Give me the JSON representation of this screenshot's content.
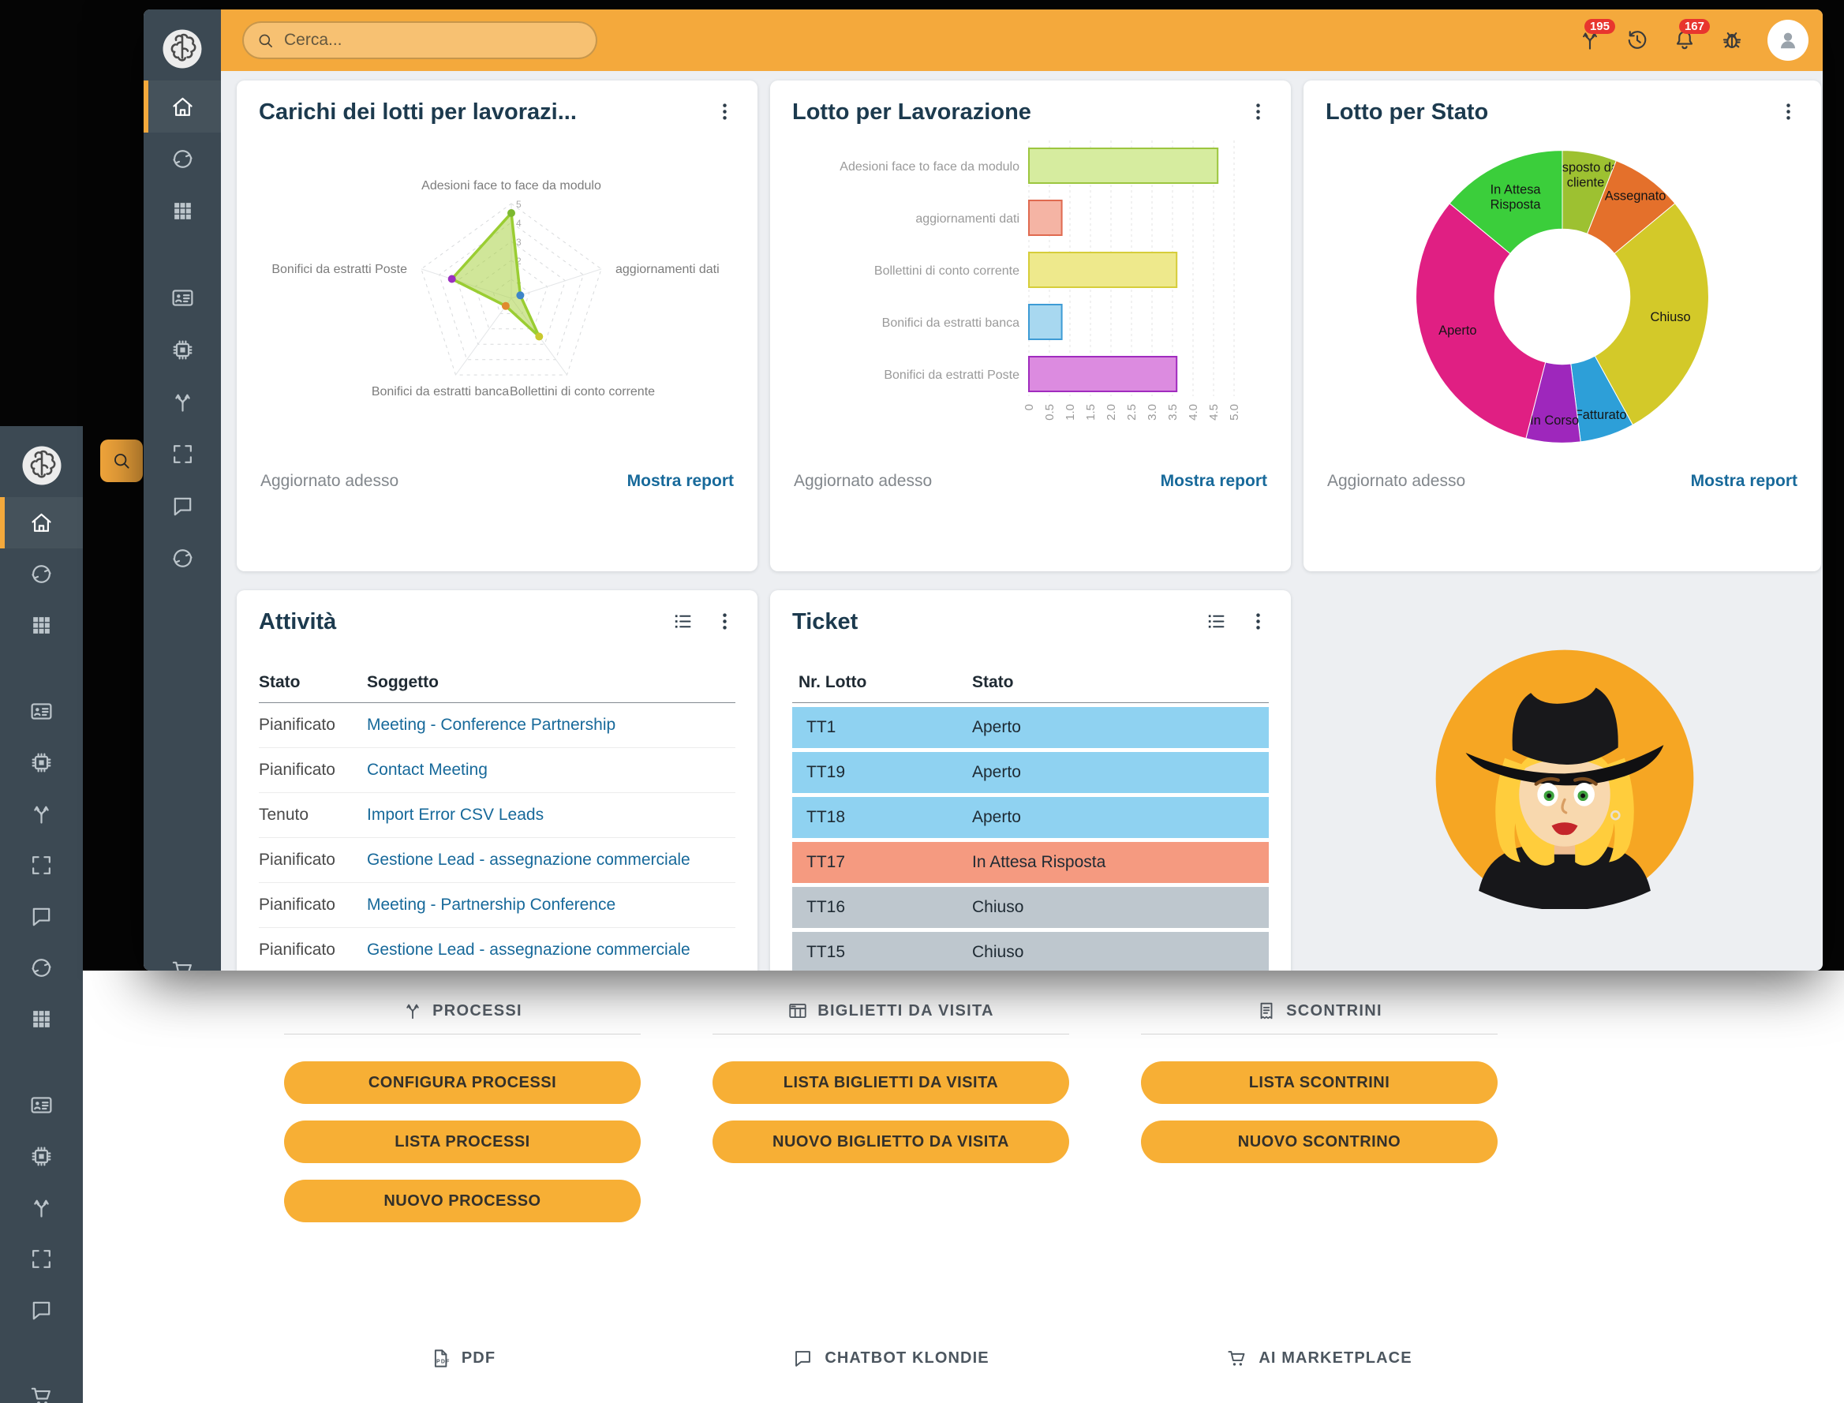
{
  "app": {
    "accent_color": "#f4a93c",
    "sidebar_color": "#3c4953",
    "badge_color": "#e8352e",
    "link_color": "#17699a"
  },
  "front_window": {
    "search": {
      "placeholder": "Cerca..."
    },
    "topbar_icons": [
      {
        "name": "process",
        "badge": "195"
      },
      {
        "name": "history"
      },
      {
        "name": "bell",
        "badge": "167"
      },
      {
        "name": "bug"
      },
      {
        "name": "avatar"
      }
    ],
    "sidebar": [
      {
        "icon": "home",
        "active": true
      },
      {
        "icon": "sync"
      },
      {
        "icon": "grid"
      },
      {
        "icon": "card",
        "gap": true
      },
      {
        "icon": "chip"
      },
      {
        "icon": "branch"
      },
      {
        "icon": "expand"
      },
      {
        "icon": "chat"
      },
      {
        "icon": "sync"
      }
    ],
    "cards": {
      "radar": {
        "title": "Carichi dei lotti per lavorazi...",
        "updated": "Aggiornato adesso",
        "report": "Mostra report"
      },
      "bar": {
        "title": "Lotto per Lavorazione",
        "updated": "Aggiornato adesso",
        "report": "Mostra report"
      },
      "donut": {
        "title": "Lotto per Stato",
        "updated": "Aggiornato adesso",
        "report": "Mostra report"
      },
      "activities": {
        "title": "Attività",
        "columns": [
          "Stato",
          "Soggetto"
        ],
        "rows": [
          [
            "Pianificato",
            "Meeting - Conference Partnership"
          ],
          [
            "Pianificato",
            "Contact Meeting"
          ],
          [
            "Tenuto",
            "Import Error CSV Leads"
          ],
          [
            "Pianificato",
            "Gestione Lead - assegnazione commerciale"
          ],
          [
            "Pianificato",
            "Meeting - Partnership Conference"
          ],
          [
            "Pianificato",
            "Gestione Lead - assegnazione commerciale"
          ]
        ]
      },
      "tickets": {
        "title": "Ticket",
        "columns": [
          "Nr. Lotto",
          "Stato"
        ],
        "rows": [
          {
            "lotto": "TT1",
            "stato": "Aperto",
            "color": "#8fd2f1"
          },
          {
            "lotto": "TT19",
            "stato": "Aperto",
            "color": "#8fd2f1"
          },
          {
            "lotto": "TT18",
            "stato": "Aperto",
            "color": "#8fd2f1"
          },
          {
            "lotto": "TT17",
            "stato": "In Attesa Risposta",
            "color": "#f59a80"
          },
          {
            "lotto": "TT16",
            "stato": "Chiuso",
            "color": "#bec7ce"
          },
          {
            "lotto": "TT15",
            "stato": "Chiuso",
            "color": "#bec7ce"
          }
        ]
      }
    }
  },
  "back_window": {
    "sidebar": [
      {
        "icon": "home",
        "active": true
      },
      {
        "icon": "sync"
      },
      {
        "icon": "grid"
      },
      {
        "icon": "card",
        "gap": true
      },
      {
        "icon": "chip"
      },
      {
        "icon": "branch"
      },
      {
        "icon": "expand"
      },
      {
        "icon": "chat"
      },
      {
        "icon": "sync"
      },
      {
        "icon": "grid"
      },
      {
        "icon": "card",
        "gap": true
      },
      {
        "icon": "chip"
      },
      {
        "icon": "branch"
      },
      {
        "icon": "expand"
      },
      {
        "icon": "chat"
      },
      {
        "icon": "cart",
        "gap": true
      }
    ],
    "sections": [
      {
        "title": "PROCESSI",
        "icon": "branch",
        "buttons": [
          "CONFIGURA PROCESSI",
          "LISTA PROCESSI",
          "NUOVO PROCESSO"
        ]
      },
      {
        "title": "BIGLIETTI DA VISITA",
        "icon": "cardgrid",
        "buttons": [
          "LISTA BIGLIETTI DA VISITA",
          "NUOVO BIGLIETTO DA VISITA"
        ]
      },
      {
        "title": "SCONTRINI",
        "icon": "receipt",
        "buttons": [
          "LISTA SCONTRINI",
          "NUOVO SCONTRINO"
        ]
      }
    ],
    "footer_items": [
      {
        "label": "PDF",
        "icon": "pdf"
      },
      {
        "label": "CHATBOT KLONDIE",
        "icon": "chat"
      },
      {
        "label": "AI MARKETPLACE",
        "icon": "cart"
      }
    ]
  },
  "chart_data": [
    {
      "type": "radar",
      "title": "Carichi dei lotti per lavorazi...",
      "categories": [
        "Adesioni face to face da modulo",
        "aggiornamenti dati",
        "Bollettini di conto corrente",
        "Bonifici da estratti banca",
        "Bonifici da estratti Poste"
      ],
      "values": [
        4.5,
        0.5,
        2.5,
        0.5,
        3.3
      ],
      "rmax": 5,
      "rticks": [
        1,
        2,
        3,
        4,
        5
      ],
      "series_color": "#9acd32",
      "point_colors": [
        "#7cb82f",
        "#3d85c8",
        "#c9c92e",
        "#e08a2e",
        "#9b30c0"
      ],
      "grid": true
    },
    {
      "type": "bar",
      "orientation": "horizontal",
      "title": "Lotto per Lavorazione",
      "categories": [
        "Adesioni face to face da modulo",
        "aggiornamenti dati",
        "Bollettini di conto corrente",
        "Bonifici da estratti banca",
        "Bonifici da estratti Poste"
      ],
      "values": [
        4.6,
        0.8,
        3.6,
        0.8,
        3.6
      ],
      "colors": [
        "#d6ec9f",
        "#f5b4a4",
        "#eee98c",
        "#a8d8f0",
        "#dc8be0"
      ],
      "border_colors": [
        "#9cc63f",
        "#e06a50",
        "#d6cd3a",
        "#3d9bd5",
        "#a02bbe"
      ],
      "xlim": [
        0,
        5
      ],
      "xticks": [
        "0",
        "0.5",
        "1.0",
        "1.5",
        "2.0",
        "2.5",
        "3.0",
        "3.5",
        "4.0",
        "4.5",
        "5.0"
      ],
      "grid": true
    },
    {
      "type": "pie",
      "donut": true,
      "title": "Lotto per Stato",
      "slices": [
        {
          "label": "Risposto dal cliente",
          "value": 6,
          "color": "#9dc131"
        },
        {
          "label": "Assegnato",
          "value": 8,
          "color": "#e4702b"
        },
        {
          "label": "Chiuso",
          "value": 28,
          "color": "#d3c929"
        },
        {
          "label": "Fatturato",
          "value": 6,
          "color": "#2d9fd8"
        },
        {
          "label": "In Corso",
          "value": 6,
          "color": "#9e27bc"
        },
        {
          "label": "Aperto",
          "value": 32,
          "color": "#e01f83"
        },
        {
          "label": "In Attesa Risposta",
          "value": 14,
          "color": "#3bce3b"
        }
      ],
      "legend": false
    }
  ]
}
